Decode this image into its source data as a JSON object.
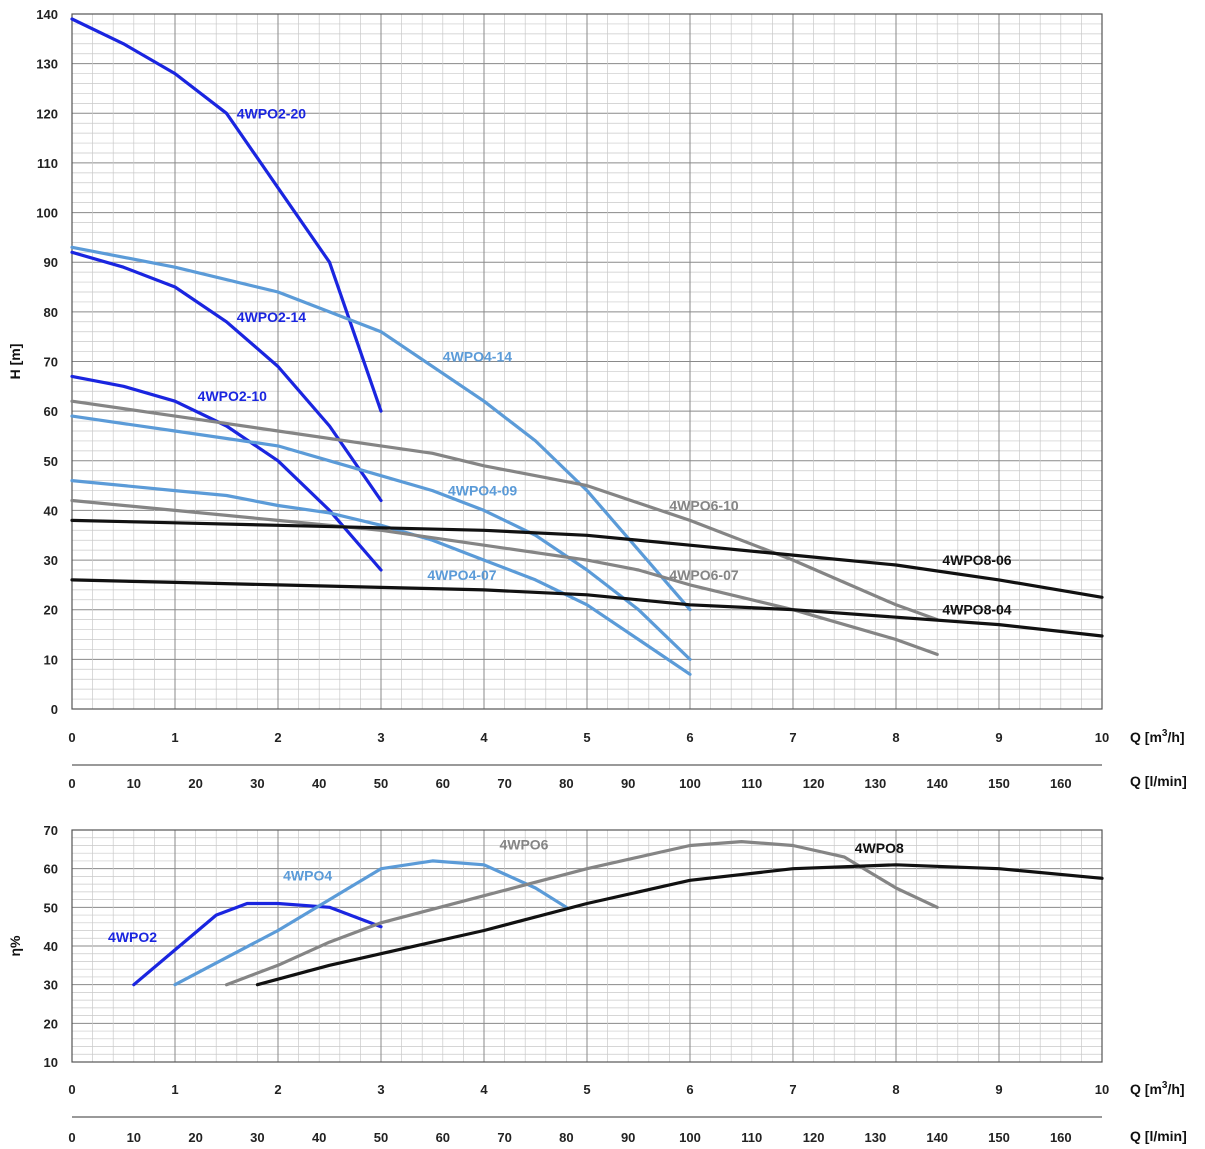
{
  "chart_data": [
    {
      "type": "line",
      "title": "",
      "ylabel": "H [m]",
      "xlabel": "Q [m3/h]",
      "xlabel2": "Q [l/min]",
      "xlim": [
        0,
        10
      ],
      "ylim": [
        0,
        140
      ],
      "yticks": [
        "0",
        "10",
        "20",
        "30",
        "40",
        "50",
        "60",
        "70",
        "80",
        "90",
        "100",
        "110",
        "120",
        "130",
        "140"
      ],
      "xticks": [
        "0",
        "1",
        "2",
        "3",
        "4",
        "5",
        "6",
        "7",
        "8",
        "9",
        "10"
      ],
      "xticks2": [
        "0",
        "10",
        "20",
        "30",
        "40",
        "50",
        "60",
        "70",
        "80",
        "90",
        "100",
        "110",
        "120",
        "130",
        "140",
        "150",
        "160"
      ],
      "grid": true,
      "series": [
        {
          "name": "4WPO2-20",
          "color": "#1a25e0",
          "x": [
            0,
            0.5,
            1,
            1.5,
            2,
            2.5,
            3
          ],
          "y": [
            139,
            134,
            128,
            120,
            105,
            90,
            60
          ]
        },
        {
          "name": "4WPO2-14",
          "color": "#1a25e0",
          "x": [
            0,
            0.5,
            1,
            1.5,
            2,
            2.5,
            3
          ],
          "y": [
            92,
            89,
            85,
            78,
            69,
            57,
            42
          ]
        },
        {
          "name": "4WPO2-10",
          "color": "#1a25e0",
          "x": [
            0,
            0.5,
            1,
            1.5,
            2,
            2.5,
            3
          ],
          "y": [
            67,
            65,
            62,
            57,
            50,
            40,
            28
          ]
        },
        {
          "name": "4WPO4-14",
          "color": "#5b9bd8",
          "x": [
            0,
            1,
            2,
            3,
            4,
            4.5,
            5,
            5.5,
            6
          ],
          "y": [
            93,
            89,
            84,
            76,
            62,
            54,
            44,
            32,
            20
          ]
        },
        {
          "name": "4WPO4-09",
          "color": "#5b9bd8",
          "x": [
            0,
            1,
            2,
            2.5,
            3,
            3.5,
            4,
            4.5,
            5,
            5.5,
            6
          ],
          "y": [
            59,
            56,
            53,
            50,
            47,
            44,
            40,
            35,
            28,
            20,
            10
          ]
        },
        {
          "name": "4WPO4-07",
          "color": "#5b9bd8",
          "x": [
            0,
            1,
            1.5,
            2,
            2.5,
            3,
            3.5,
            4,
            4.5,
            5,
            5.5,
            6
          ],
          "y": [
            46,
            44,
            43,
            41,
            39.5,
            37,
            34,
            30,
            26,
            21,
            14,
            7
          ]
        },
        {
          "name": "4WPO6-10",
          "color": "#858585",
          "x": [
            0,
            1,
            2,
            3,
            3.5,
            4,
            5,
            6,
            7,
            8,
            8.4
          ],
          "y": [
            62,
            59,
            56,
            53,
            51.5,
            49,
            45,
            38,
            30,
            21,
            18
          ]
        },
        {
          "name": "4WPO6-07",
          "color": "#858585",
          "x": [
            0,
            1,
            2,
            3,
            4,
            5,
            5.5,
            6,
            7,
            8,
            8.4
          ],
          "y": [
            42,
            40,
            38,
            36,
            33,
            30,
            28,
            25,
            20,
            14,
            11
          ]
        },
        {
          "name": "4WPO8-06",
          "color": "#111111",
          "x": [
            0,
            1,
            2,
            3,
            4,
            5,
            6,
            7,
            8,
            9,
            10
          ],
          "y": [
            38,
            37.5,
            37,
            36.5,
            36,
            35,
            33,
            31,
            29,
            26,
            22.5
          ]
        },
        {
          "name": "4WPO8-04",
          "color": "#111111",
          "x": [
            0,
            1,
            2,
            3,
            4,
            5,
            5.5,
            6,
            7,
            8,
            9,
            10
          ],
          "y": [
            26,
            25.5,
            25,
            24.5,
            24,
            23,
            22,
            21,
            20,
            18.5,
            17,
            14.7
          ]
        }
      ],
      "annotations": [
        {
          "text": "4WPO2-20",
          "x": 1.6,
          "y": 119,
          "color": "#1a25e0"
        },
        {
          "text": "4WPO2-14",
          "x": 1.6,
          "y": 78,
          "color": "#1a25e0"
        },
        {
          "text": "4WPO2-10",
          "x": 1.22,
          "y": 62,
          "color": "#1a25e0"
        },
        {
          "text": "4WPO4-14",
          "x": 3.6,
          "y": 70,
          "color": "#5b9bd8"
        },
        {
          "text": "4WPO4-09",
          "x": 3.65,
          "y": 43,
          "color": "#5b9bd8"
        },
        {
          "text": "4WPO4-07",
          "x": 3.45,
          "y": 26,
          "color": "#5b9bd8"
        },
        {
          "text": "4WPO6-10",
          "x": 5.8,
          "y": 40,
          "color": "#858585"
        },
        {
          "text": "4WPO6-07",
          "x": 5.8,
          "y": 26,
          "color": "#858585"
        },
        {
          "text": "4WPO8-06",
          "x": 8.45,
          "y": 29,
          "color": "#111111"
        },
        {
          "text": "4WPO8-04",
          "x": 8.45,
          "y": 19,
          "color": "#111111"
        }
      ]
    },
    {
      "type": "line",
      "title": "",
      "ylabel": "η%",
      "xlabel": "Q [m3/h]",
      "xlabel2": "Q [l/min]",
      "xlim": [
        0,
        10
      ],
      "ylim": [
        10,
        70
      ],
      "yticks": [
        "10",
        "20",
        "30",
        "40",
        "50",
        "60",
        "70"
      ],
      "xticks": [
        "0",
        "1",
        "2",
        "3",
        "4",
        "5",
        "6",
        "7",
        "8",
        "9",
        "10"
      ],
      "xticks2": [
        "0",
        "10",
        "20",
        "30",
        "40",
        "50",
        "60",
        "70",
        "80",
        "90",
        "100",
        "110",
        "120",
        "130",
        "140",
        "150",
        "160"
      ],
      "grid": true,
      "series": [
        {
          "name": "4WPO2",
          "color": "#1a25e0",
          "x": [
            0.6,
            1,
            1.4,
            1.7,
            2,
            2.5,
            3
          ],
          "y": [
            30,
            39,
            48,
            51,
            51,
            50,
            45
          ]
        },
        {
          "name": "4WPO4",
          "color": "#5b9bd8",
          "x": [
            1,
            1.5,
            2,
            2.5,
            3,
            3.5,
            4,
            4.5,
            4.8
          ],
          "y": [
            30,
            37,
            44,
            52,
            60,
            62,
            61,
            55,
            50
          ]
        },
        {
          "name": "4WPO6",
          "color": "#858585",
          "x": [
            1.5,
            2,
            2.5,
            3,
            4,
            5,
            6,
            6.5,
            7,
            7.5,
            8,
            8.4
          ],
          "y": [
            30,
            35,
            41,
            46,
            53,
            60,
            66,
            67,
            66,
            63,
            55,
            50
          ]
        },
        {
          "name": "4WPO8",
          "color": "#111111",
          "x": [
            1.8,
            2.5,
            3,
            4,
            5,
            6,
            7,
            8,
            9,
            10
          ],
          "y": [
            30,
            35,
            38,
            44,
            51,
            57,
            60,
            61,
            60,
            57.5
          ]
        }
      ],
      "annotations": [
        {
          "text": "4WPO2",
          "x": 0.35,
          "y": 41,
          "color": "#1a25e0"
        },
        {
          "text": "4WPO4",
          "x": 2.05,
          "y": 57,
          "color": "#5b9bd8"
        },
        {
          "text": "4WPO6",
          "x": 4.15,
          "y": 65,
          "color": "#858585"
        },
        {
          "text": "4WPO8",
          "x": 7.6,
          "y": 64,
          "color": "#111111"
        }
      ]
    }
  ]
}
